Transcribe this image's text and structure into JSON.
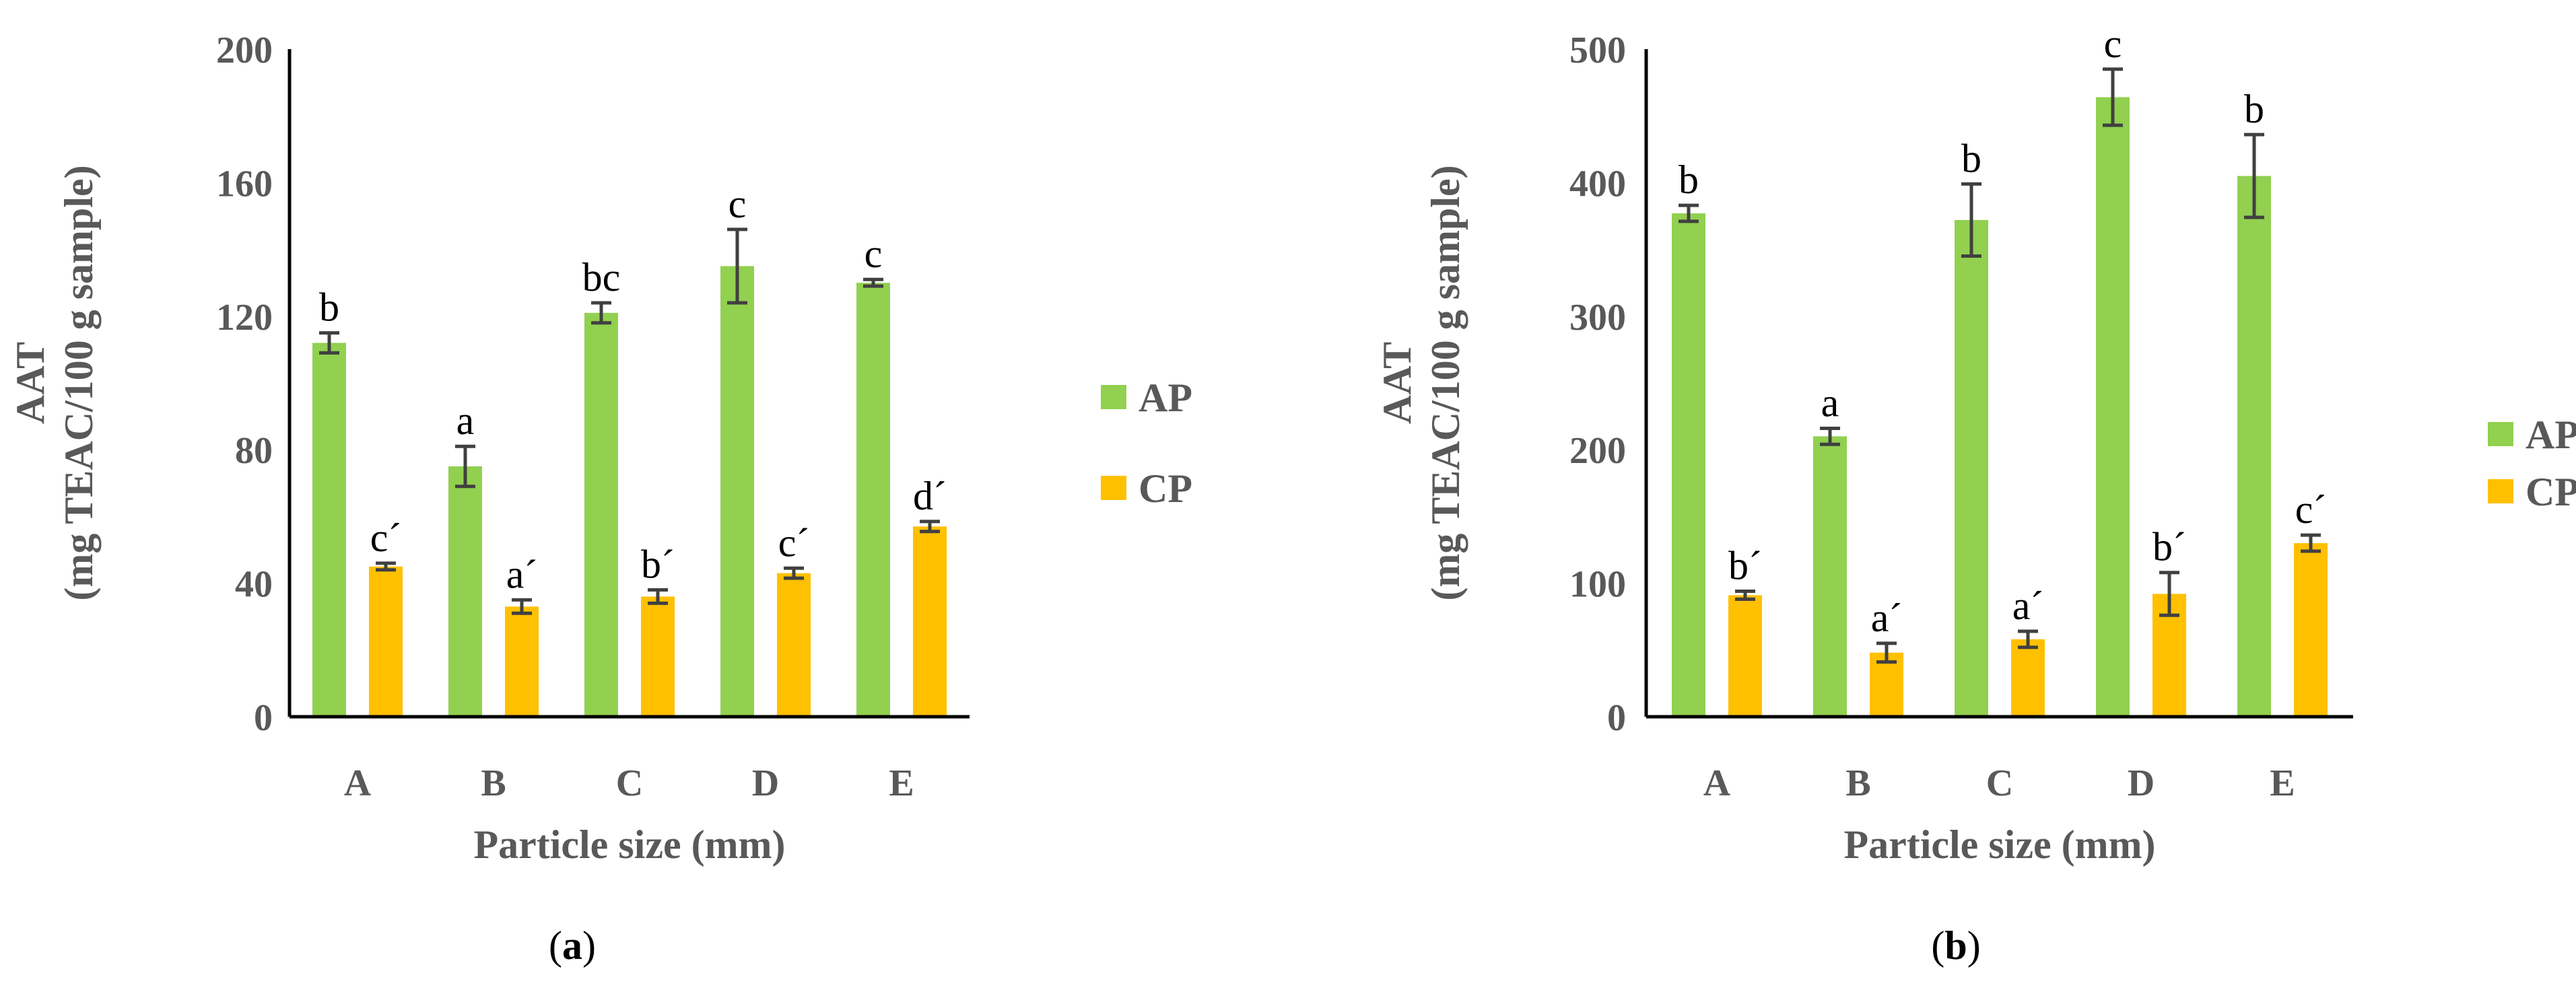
{
  "colors": {
    "AP": "#92d050",
    "CP": "#ffc000",
    "axis": "#000000",
    "error_bar": "#404040",
    "text": "#595959"
  },
  "chart_data": [
    {
      "type": "bar",
      "panel": "a",
      "panel_label": {
        "open": "(",
        "letter": "a",
        "close": ")"
      },
      "xlabel": "Particle size (mm)",
      "ylabel_line1": "AAT",
      "ylabel_line2": "(mg TEAC/100 g sample)",
      "ylim": [
        0,
        200
      ],
      "yticks": [
        "0",
        "40",
        "80",
        "120",
        "160",
        "200"
      ],
      "categories": [
        "A",
        "B",
        "C",
        "D",
        "E"
      ],
      "legend_position": "right",
      "series": [
        {
          "name": "AP",
          "values": [
            112,
            75,
            121,
            135,
            130
          ],
          "errors": [
            3,
            6,
            3,
            11,
            1
          ],
          "letters": [
            "b",
            "a",
            "bc",
            "c",
            "c"
          ]
        },
        {
          "name": "CP",
          "values": [
            45,
            33,
            36,
            43,
            57
          ],
          "errors": [
            1,
            2,
            2,
            1.5,
            1.5
          ],
          "letters": [
            "c´",
            "a´",
            "b´",
            "c´",
            "d´"
          ]
        }
      ]
    },
    {
      "type": "bar",
      "panel": "b",
      "panel_label": {
        "open": "(",
        "letter": "b",
        "close": ")"
      },
      "xlabel": "Particle size (mm)",
      "ylabel_line1": "AAT",
      "ylabel_line2": "(mg TEAC/100 g sample)",
      "ylim": [
        0,
        500
      ],
      "yticks": [
        "0",
        "100",
        "200",
        "300",
        "400",
        "500"
      ],
      "categories": [
        "A",
        "B",
        "C",
        "D",
        "E"
      ],
      "legend_position": "right",
      "series": [
        {
          "name": "AP",
          "values": [
            377,
            210,
            372,
            464,
            405
          ],
          "errors": [
            6,
            6,
            27,
            21,
            31
          ],
          "letters": [
            "b",
            "a",
            "b",
            "c",
            "b"
          ]
        },
        {
          "name": "CP",
          "values": [
            91,
            48,
            58,
            92,
            130
          ],
          "errors": [
            3,
            7,
            6,
            16,
            6
          ],
          "letters": [
            "b´",
            "a´",
            "a´",
            "b´",
            "c´"
          ]
        }
      ]
    }
  ]
}
